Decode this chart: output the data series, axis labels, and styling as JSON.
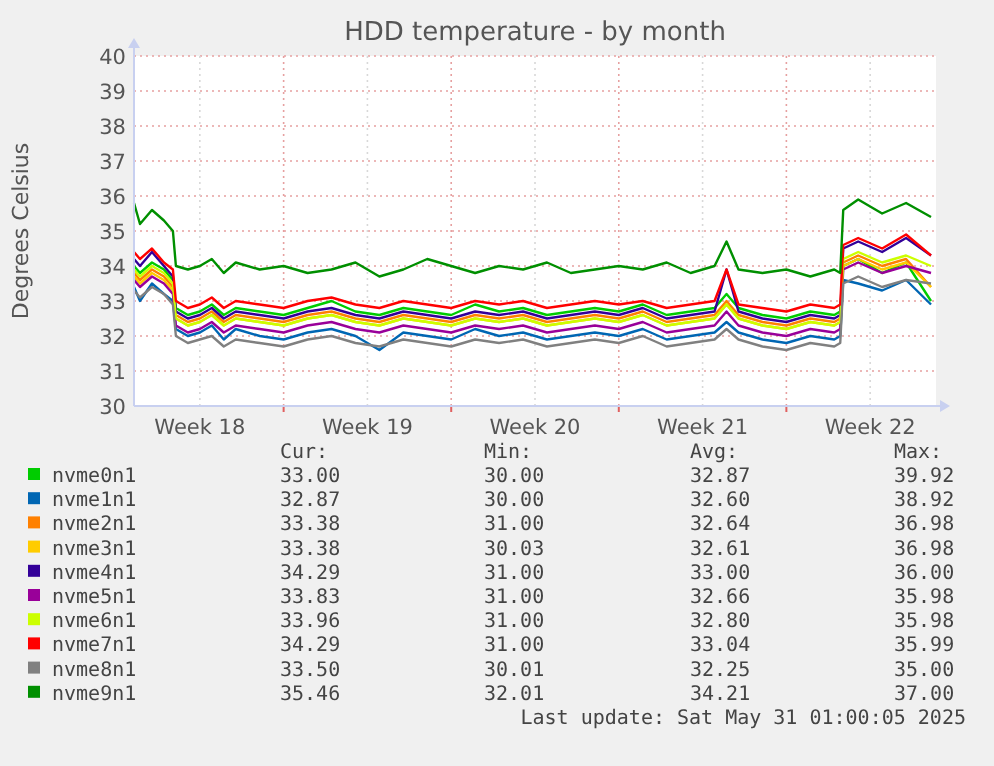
{
  "chart_data": {
    "type": "line",
    "title": "HDD temperature - by month",
    "ylabel": "Degrees Celsius",
    "x": [
      "2025-04-27T18:00",
      "2025-04-28T00:00",
      "2025-04-28T12:00",
      "2025-04-29T00:00",
      "2025-04-29T09:00",
      "2025-04-29T12:00",
      "2025-04-30T00:00",
      "2025-04-30T12:00",
      "2025-05-01T00:00",
      "2025-05-01T12:00",
      "2025-05-02",
      "2025-05-03",
      "2025-05-04",
      "2025-05-05",
      "2025-05-06",
      "2025-05-07",
      "2025-05-08",
      "2025-05-09",
      "2025-05-10",
      "2025-05-11",
      "2025-05-12",
      "2025-05-13",
      "2025-05-14",
      "2025-05-15",
      "2025-05-16",
      "2025-05-17",
      "2025-05-18",
      "2025-05-19",
      "2025-05-20",
      "2025-05-21",
      "2025-05-22T00:00",
      "2025-05-22T12:00",
      "2025-05-23T00:00",
      "2025-05-24",
      "2025-05-25",
      "2025-05-26",
      "2025-05-27T00:00",
      "2025-05-27T06:00",
      "2025-05-27T09:00",
      "2025-05-28",
      "2025-05-29",
      "2025-05-30",
      "2025-05-31T01:00"
    ],
    "xlim": [
      "2025-04-27T18:00",
      "2025-05-31T06:00"
    ],
    "xticks": [
      {
        "value": "2025-04-30T12:00",
        "label": "Week 18"
      },
      {
        "value": "2025-05-04",
        "label": null
      },
      {
        "value": "2025-05-07T12:00",
        "label": "Week 19"
      },
      {
        "value": "2025-05-11",
        "label": null
      },
      {
        "value": "2025-05-14T12:00",
        "label": "Week 20"
      },
      {
        "value": "2025-05-18",
        "label": null
      },
      {
        "value": "2025-05-21T12:00",
        "label": "Week 21"
      },
      {
        "value": "2025-05-25",
        "label": null
      },
      {
        "value": "2025-05-28T12:00",
        "label": "Week 22"
      }
    ],
    "ylim": [
      30,
      40
    ],
    "yticks": [
      30,
      31,
      32,
      33,
      34,
      35,
      36,
      37,
      38,
      39,
      40
    ],
    "grid": true,
    "legend": "bottom",
    "marker": "none",
    "line_style": "solid",
    "series": [
      {
        "name": "nvme0n1",
        "color": "#00cc00",
        "values": [
          34.0,
          33.8,
          34.1,
          33.9,
          33.6,
          32.8,
          32.6,
          32.7,
          32.9,
          32.6,
          32.8,
          32.7,
          32.6,
          32.8,
          33.0,
          32.7,
          32.6,
          32.8,
          32.7,
          32.6,
          32.9,
          32.7,
          32.8,
          32.6,
          32.7,
          32.8,
          32.7,
          32.9,
          32.6,
          32.7,
          32.8,
          33.2,
          32.8,
          32.6,
          32.5,
          32.7,
          32.6,
          32.7,
          34.0,
          34.2,
          33.8,
          34.1,
          33.0
        ]
      },
      {
        "name": "nvme1n1",
        "color": "#0066b3",
        "values": [
          33.4,
          33.0,
          33.5,
          33.2,
          33.0,
          32.2,
          32.0,
          32.1,
          32.3,
          31.9,
          32.2,
          32.0,
          31.9,
          32.1,
          32.2,
          32.0,
          31.6,
          32.1,
          32.0,
          31.9,
          32.2,
          32.0,
          32.1,
          31.9,
          32.0,
          32.1,
          32.0,
          32.2,
          31.9,
          32.0,
          32.1,
          32.4,
          32.1,
          31.9,
          31.8,
          32.0,
          31.9,
          32.0,
          33.6,
          33.5,
          33.3,
          33.6,
          32.9
        ]
      },
      {
        "name": "nvme2n1",
        "color": "#ff8000",
        "values": [
          33.8,
          33.6,
          33.9,
          33.7,
          33.4,
          32.6,
          32.4,
          32.5,
          32.7,
          32.4,
          32.6,
          32.5,
          32.4,
          32.6,
          32.7,
          32.5,
          32.4,
          32.6,
          32.5,
          32.4,
          32.6,
          32.5,
          32.6,
          32.4,
          32.5,
          32.6,
          32.5,
          32.7,
          32.4,
          32.5,
          32.6,
          33.0,
          32.6,
          32.4,
          32.3,
          32.5,
          32.4,
          32.5,
          34.1,
          34.3,
          34.0,
          34.2,
          33.4
        ]
      },
      {
        "name": "nvme3n1",
        "color": "#ffcc00",
        "values": [
          33.7,
          33.5,
          33.8,
          33.6,
          33.3,
          32.5,
          32.3,
          32.4,
          32.6,
          32.3,
          32.5,
          32.4,
          32.3,
          32.5,
          32.6,
          32.4,
          32.3,
          32.5,
          32.4,
          32.3,
          32.5,
          32.4,
          32.5,
          32.3,
          32.4,
          32.5,
          32.4,
          32.6,
          32.3,
          32.4,
          32.5,
          32.9,
          32.5,
          32.3,
          32.2,
          32.4,
          32.3,
          32.4,
          34.0,
          34.2,
          33.9,
          34.1,
          33.4
        ]
      },
      {
        "name": "nvme4n1",
        "color": "#330099",
        "values": [
          34.2,
          34.0,
          34.4,
          34.0,
          33.7,
          32.7,
          32.5,
          32.6,
          32.8,
          32.5,
          32.7,
          32.6,
          32.5,
          32.7,
          32.8,
          32.6,
          32.5,
          32.7,
          32.6,
          32.5,
          32.7,
          32.6,
          32.7,
          32.5,
          32.6,
          32.7,
          32.6,
          32.8,
          32.5,
          32.6,
          32.7,
          33.9,
          32.7,
          32.5,
          32.4,
          32.6,
          32.5,
          32.6,
          34.5,
          34.7,
          34.4,
          34.8,
          34.3
        ]
      },
      {
        "name": "nvme5n1",
        "color": "#990099",
        "values": [
          33.6,
          33.4,
          33.7,
          33.5,
          33.2,
          32.3,
          32.1,
          32.2,
          32.4,
          32.1,
          32.3,
          32.2,
          32.1,
          32.3,
          32.4,
          32.2,
          32.1,
          32.3,
          32.2,
          32.1,
          32.3,
          32.2,
          32.3,
          32.1,
          32.2,
          32.3,
          32.2,
          32.4,
          32.1,
          32.2,
          32.3,
          32.7,
          32.3,
          32.1,
          32.0,
          32.2,
          32.1,
          32.2,
          33.9,
          34.1,
          33.8,
          34.0,
          33.8
        ]
      },
      {
        "name": "nvme6n1",
        "color": "#ccff00",
        "values": [
          33.9,
          33.7,
          34.0,
          33.8,
          33.5,
          32.5,
          32.3,
          32.4,
          32.6,
          32.3,
          32.5,
          32.4,
          32.3,
          32.5,
          32.6,
          32.4,
          32.3,
          32.5,
          32.4,
          32.3,
          32.5,
          32.4,
          32.5,
          32.3,
          32.4,
          32.5,
          32.4,
          32.6,
          32.3,
          32.4,
          32.5,
          32.9,
          32.5,
          32.3,
          32.2,
          32.4,
          32.3,
          32.4,
          34.2,
          34.4,
          34.1,
          34.3,
          34.0
        ]
      },
      {
        "name": "nvme7n1",
        "color": "#ff0000",
        "values": [
          34.4,
          34.2,
          34.5,
          34.1,
          33.9,
          33.0,
          32.8,
          32.9,
          33.1,
          32.8,
          33.0,
          32.9,
          32.8,
          33.0,
          33.1,
          32.9,
          32.8,
          33.0,
          32.9,
          32.8,
          33.0,
          32.9,
          33.0,
          32.8,
          32.9,
          33.0,
          32.9,
          33.0,
          32.8,
          32.9,
          33.0,
          33.9,
          32.9,
          32.8,
          32.7,
          32.9,
          32.8,
          32.9,
          34.6,
          34.8,
          34.5,
          34.9,
          34.3
        ]
      },
      {
        "name": "nvme8n1",
        "color": "#808080",
        "values": [
          33.3,
          33.1,
          33.4,
          33.2,
          32.9,
          32.0,
          31.8,
          31.9,
          32.0,
          31.7,
          31.9,
          31.8,
          31.7,
          31.9,
          32.0,
          31.8,
          31.7,
          31.9,
          31.8,
          31.7,
          31.9,
          31.8,
          31.9,
          31.7,
          31.8,
          31.9,
          31.8,
          32.0,
          31.7,
          31.8,
          31.9,
          32.2,
          31.9,
          31.7,
          31.6,
          31.8,
          31.7,
          31.8,
          33.5,
          33.7,
          33.4,
          33.6,
          33.5
        ]
      },
      {
        "name": "nvme9n1",
        "color": "#008f00",
        "values": [
          35.8,
          35.2,
          35.6,
          35.3,
          35.0,
          34.0,
          33.9,
          34.0,
          34.2,
          33.8,
          34.1,
          33.9,
          34.0,
          33.8,
          33.9,
          34.1,
          33.7,
          33.9,
          34.2,
          34.0,
          33.8,
          34.0,
          33.9,
          34.1,
          33.8,
          33.9,
          34.0,
          33.9,
          34.1,
          33.8,
          34.0,
          34.7,
          33.9,
          33.8,
          33.9,
          33.7,
          33.9,
          33.8,
          35.6,
          35.9,
          35.5,
          35.8,
          35.4
        ]
      }
    ],
    "annotations": [
      "Cur:",
      "Min:",
      "Avg:",
      "Max:",
      "33.00",
      "30.00",
      "32.87",
      "39.92",
      "32.87",
      "30.00",
      "32.60",
      "38.92",
      "33.38",
      "31.00",
      "32.64",
      "36.98",
      "33.38",
      "30.03",
      "32.61",
      "36.98",
      "34.29",
      "31.00",
      "33.00",
      "36.00",
      "33.83",
      "31.00",
      "32.66",
      "35.98",
      "33.96",
      "31.00",
      "32.80",
      "35.98",
      "34.29",
      "31.00",
      "33.04",
      "35.99",
      "33.50",
      "30.01",
      "32.25",
      "35.00",
      "35.46",
      "32.01",
      "34.21",
      "37.00",
      "Last update: Sat May 31 01:00:05 2025"
    ]
  }
}
